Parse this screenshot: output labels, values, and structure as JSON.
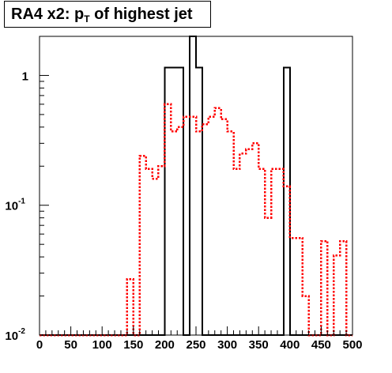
{
  "chart_data": {
    "type": "histogram",
    "title_main": "RA4 x2: p",
    "title_sub": "T",
    "title_rest": " of highest jet",
    "xlim": [
      0,
      500
    ],
    "ylim": [
      0.01,
      2.0
    ],
    "y_log": true,
    "bin_width": 10,
    "x_ticks": [
      "0",
      "50",
      "100",
      "150",
      "200",
      "250",
      "300",
      "350",
      "400",
      "450",
      "500"
    ],
    "y_ticks": [
      {
        "value": 1,
        "base": "1",
        "exp": ""
      },
      {
        "value": 0.1,
        "base": "10",
        "exp": "-1"
      },
      {
        "value": 0.01,
        "base": "10",
        "exp": "-2"
      }
    ],
    "series": [
      {
        "color": "#000000",
        "style": "solid",
        "bins": [
          {
            "x0": 200,
            "x1": 230,
            "y": 1.15
          },
          {
            "x0": 240,
            "x1": 250,
            "y": 2.5
          },
          {
            "x0": 250,
            "x1": 260,
            "y": 1.15
          },
          {
            "x0": 390,
            "x1": 400,
            "y": 1.15
          }
        ]
      },
      {
        "color": "#ff0000",
        "style": "dotted",
        "bins": [
          {
            "x0": 140,
            "x1": 150,
            "y": 0.027
          },
          {
            "x0": 160,
            "x1": 170,
            "y": 0.24
          },
          {
            "x0": 170,
            "x1": 180,
            "y": 0.19
          },
          {
            "x0": 180,
            "x1": 190,
            "y": 0.16
          },
          {
            "x0": 190,
            "x1": 200,
            "y": 0.2
          },
          {
            "x0": 200,
            "x1": 210,
            "y": 0.6
          },
          {
            "x0": 210,
            "x1": 220,
            "y": 0.37
          },
          {
            "x0": 220,
            "x1": 230,
            "y": 0.4
          },
          {
            "x0": 230,
            "x1": 240,
            "y": 0.48
          },
          {
            "x0": 240,
            "x1": 250,
            "y": 0.48
          },
          {
            "x0": 250,
            "x1": 260,
            "y": 0.37
          },
          {
            "x0": 260,
            "x1": 270,
            "y": 0.42
          },
          {
            "x0": 270,
            "x1": 280,
            "y": 0.48
          },
          {
            "x0": 280,
            "x1": 290,
            "y": 0.56
          },
          {
            "x0": 290,
            "x1": 300,
            "y": 0.46
          },
          {
            "x0": 300,
            "x1": 310,
            "y": 0.37
          },
          {
            "x0": 310,
            "x1": 320,
            "y": 0.19
          },
          {
            "x0": 320,
            "x1": 330,
            "y": 0.25
          },
          {
            "x0": 330,
            "x1": 340,
            "y": 0.27
          },
          {
            "x0": 340,
            "x1": 350,
            "y": 0.3
          },
          {
            "x0": 350,
            "x1": 360,
            "y": 0.19
          },
          {
            "x0": 360,
            "x1": 370,
            "y": 0.08
          },
          {
            "x0": 370,
            "x1": 380,
            "y": 0.19
          },
          {
            "x0": 380,
            "x1": 390,
            "y": 0.19
          },
          {
            "x0": 390,
            "x1": 400,
            "y": 0.14
          },
          {
            "x0": 400,
            "x1": 410,
            "y": 0.056
          },
          {
            "x0": 410,
            "x1": 420,
            "y": 0.056
          },
          {
            "x0": 420,
            "x1": 430,
            "y": 0.02
          },
          {
            "x0": 450,
            "x1": 460,
            "y": 0.053
          },
          {
            "x0": 470,
            "x1": 480,
            "y": 0.041
          },
          {
            "x0": 480,
            "x1": 490,
            "y": 0.053
          }
        ]
      }
    ]
  }
}
